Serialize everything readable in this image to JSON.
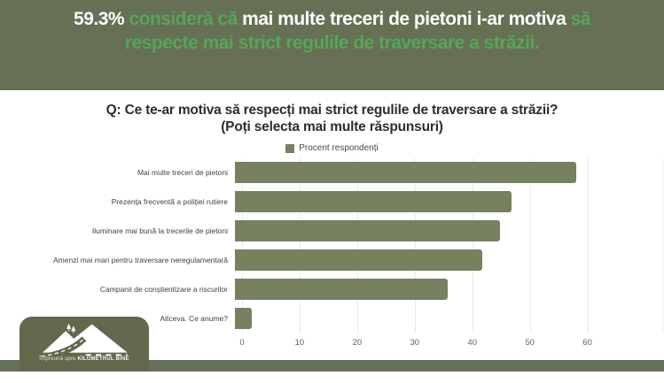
{
  "header": {
    "full_text": "59.3% consideră că mai multe treceri de pietoni i-ar motiva să respecte mai strict regulile de traversare a străzii.",
    "segments": [
      {
        "text": "59.3% ",
        "style": "white"
      },
      {
        "text": "consideră că ",
        "style": "green"
      },
      {
        "text": "mai multe treceri de pietoni i-ar motiva ",
        "style": "white"
      },
      {
        "text": "să respecte mai strict regulile de traversare a străzii.",
        "style": "green"
      }
    ],
    "background_color": "#667054",
    "green_text_color": "#57a55a",
    "white_text_color": "#ffffff"
  },
  "chart_data": {
    "type": "bar",
    "orientation": "horizontal",
    "title": "Q: Ce te-ar motiva să respecți mai strict regulile de traversare a străzii? (Poți selecta mai multe răspunsuri)",
    "legend": {
      "label": "Procent respondenți",
      "position": "top"
    },
    "categories": [
      "Mai multe treceri de pietoni",
      "Prezența frecventă a poliției rutiere",
      "Iluminare mai bună la trecerile de pietoni",
      "Amenzi mai mari pentru traversare neregulamentară",
      "Campanii de conștientizare a riscurilor",
      "Altceva. Ce anume?"
    ],
    "values": [
      59.3,
      48,
      46,
      43,
      37,
      3
    ],
    "xlabel": "",
    "ylabel": "",
    "xticks": [
      0,
      10,
      20,
      30,
      40,
      50,
      60
    ],
    "xlim": [
      0,
      73
    ],
    "grid": true,
    "bar_color": "#75815f"
  },
  "logo": {
    "tagline_prefix": "Împreună spre ",
    "brand": "KILOMETRUL BINE",
    "box_color": "#62684c"
  },
  "footer": {
    "strip_color": "#667054"
  }
}
